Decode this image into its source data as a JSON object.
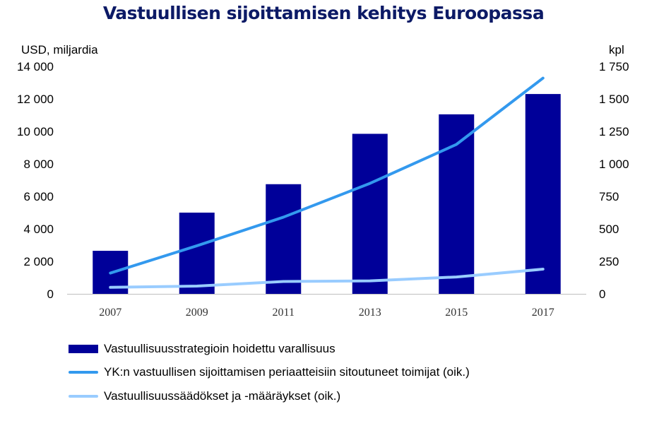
{
  "title": "Vastuullisen sijoittamisen kehitys Euroopassa",
  "ylabel_left": "USD, miljardia",
  "ylabel_right": "kpl",
  "colors": {
    "title": "#0c1a66",
    "bars": "#000099",
    "line_un_pri": "#3399ee",
    "line_regulations": "#99ccff"
  },
  "legend": [
    {
      "label": "Vastuullisuusstrategioin hoidettu varallisuus",
      "type": "bar"
    },
    {
      "label": "YK:n vastuullisen sijoittamisen periaatteisiin sitoutuneet toimijat (oik.)",
      "type": "line"
    },
    {
      "label": "Vastuullisuussäädökset ja -määräykset (oik.)",
      "type": "line"
    }
  ],
  "chart_data": {
    "type": "bar",
    "title": "Vastuullisen sijoittamisen kehitys Euroopassa",
    "categories": [
      "2007",
      "2009",
      "2011",
      "2013",
      "2015",
      "2017"
    ],
    "ylabel_left": "USD, miljardia",
    "ylabel_right": "kpl",
    "ylim_left": [
      0,
      14000
    ],
    "ylim_right": [
      0,
      1750
    ],
    "yticks_left": [
      "14 000",
      "12 000",
      "10 000",
      "8 000",
      "6 000",
      "4 000",
      "2 000",
      "0"
    ],
    "yticks_right": [
      "1 750",
      "1 500",
      "1 250",
      "1 000",
      "750",
      "500",
      "250",
      "0"
    ],
    "grid": false,
    "legend_position": "bottom",
    "series": [
      {
        "name": "Vastuullisuusstrategioin hoidettu varallisuus",
        "type": "bar",
        "axis": "left",
        "values": [
          2650,
          5000,
          6750,
          9850,
          11050,
          12300
        ]
      },
      {
        "name": "YK:n vastuullisen sijoittamisen periaatteisiin sitoutuneet toimijat (oik.)",
        "type": "line",
        "axis": "right",
        "values": [
          160,
          370,
          590,
          850,
          1150,
          1660
        ]
      },
      {
        "name": "Vastuullisuussäädökset ja -määräykset (oik.)",
        "type": "line",
        "axis": "right",
        "values": [
          50,
          60,
          95,
          100,
          130,
          190
        ]
      }
    ]
  }
}
